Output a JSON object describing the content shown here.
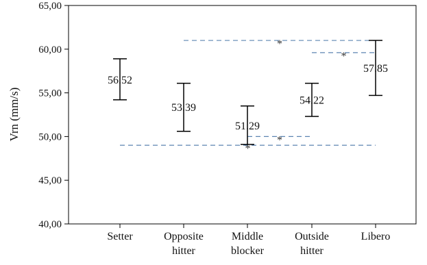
{
  "chart_data": {
    "type": "errorbar",
    "ylabel": "Vrn (mm/s)",
    "ylim": [
      40,
      65
    ],
    "yticks": [
      "40,00",
      "45,00",
      "50,00",
      "55,00",
      "60,00",
      "65,00"
    ],
    "ytick_values": [
      40,
      45,
      50,
      55,
      60,
      65
    ],
    "categories": [
      [
        "Setter"
      ],
      [
        "Opposite",
        "hitter"
      ],
      [
        "Middle",
        "blocker"
      ],
      [
        "Outside",
        "hitter"
      ],
      [
        "Libero"
      ]
    ],
    "means": [
      56.52,
      53.39,
      51.29,
      54.22,
      57.85
    ],
    "mean_labels": [
      "56.52",
      "53.39",
      "51.29",
      "54.22",
      "57.85"
    ],
    "upper": [
      58.9,
      56.1,
      53.5,
      56.1,
      61.0
    ],
    "lower": [
      54.2,
      50.6,
      49.1,
      52.3,
      54.7
    ],
    "comparisons": [
      {
        "from": 1,
        "to": 4,
        "y": 61.0,
        "label": "*"
      },
      {
        "from": 3,
        "to": 4,
        "y": 59.6,
        "label": "*"
      },
      {
        "from": 2,
        "to": 3,
        "y": 50.0,
        "label": "*"
      },
      {
        "from": 0,
        "to": 4,
        "y": 49.0,
        "label": "*"
      }
    ],
    "colors": {
      "errorbar": "#000000",
      "comparison_line": "#5b84b1"
    }
  }
}
